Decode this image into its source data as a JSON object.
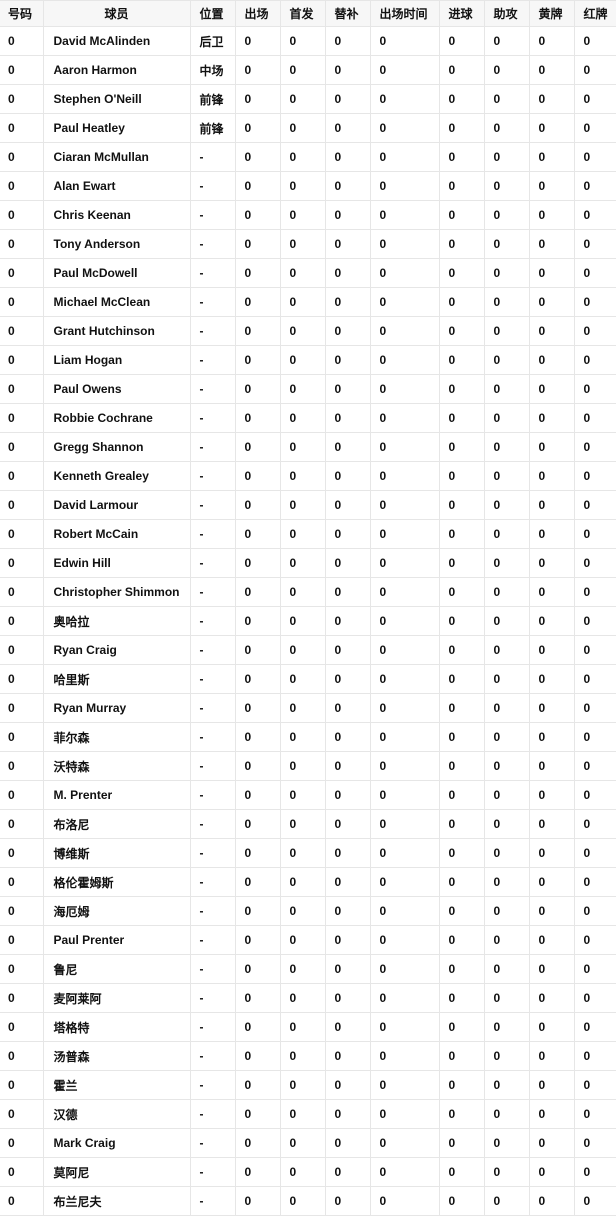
{
  "table": {
    "headers": [
      "号码",
      "球员",
      "位置",
      "出场",
      "首发",
      "替补",
      "出场时间",
      "进球",
      "助攻",
      "黄牌",
      "红牌"
    ],
    "rows": [
      [
        "0",
        "David McAlinden",
        "后卫",
        "0",
        "0",
        "0",
        "0",
        "0",
        "0",
        "0",
        "0"
      ],
      [
        "0",
        "Aaron Harmon",
        "中场",
        "0",
        "0",
        "0",
        "0",
        "0",
        "0",
        "0",
        "0"
      ],
      [
        "0",
        "Stephen O'Neill",
        "前锋",
        "0",
        "0",
        "0",
        "0",
        "0",
        "0",
        "0",
        "0"
      ],
      [
        "0",
        "Paul Heatley",
        "前锋",
        "0",
        "0",
        "0",
        "0",
        "0",
        "0",
        "0",
        "0"
      ],
      [
        "0",
        "Ciaran McMullan",
        "-",
        "0",
        "0",
        "0",
        "0",
        "0",
        "0",
        "0",
        "0"
      ],
      [
        "0",
        "Alan Ewart",
        "-",
        "0",
        "0",
        "0",
        "0",
        "0",
        "0",
        "0",
        "0"
      ],
      [
        "0",
        "Chris Keenan",
        "-",
        "0",
        "0",
        "0",
        "0",
        "0",
        "0",
        "0",
        "0"
      ],
      [
        "0",
        "Tony Anderson",
        "-",
        "0",
        "0",
        "0",
        "0",
        "0",
        "0",
        "0",
        "0"
      ],
      [
        "0",
        "Paul McDowell",
        "-",
        "0",
        "0",
        "0",
        "0",
        "0",
        "0",
        "0",
        "0"
      ],
      [
        "0",
        "Michael McClean",
        "-",
        "0",
        "0",
        "0",
        "0",
        "0",
        "0",
        "0",
        "0"
      ],
      [
        "0",
        "Grant Hutchinson",
        "-",
        "0",
        "0",
        "0",
        "0",
        "0",
        "0",
        "0",
        "0"
      ],
      [
        "0",
        "Liam Hogan",
        "-",
        "0",
        "0",
        "0",
        "0",
        "0",
        "0",
        "0",
        "0"
      ],
      [
        "0",
        "Paul Owens",
        "-",
        "0",
        "0",
        "0",
        "0",
        "0",
        "0",
        "0",
        "0"
      ],
      [
        "0",
        "Robbie Cochrane",
        "-",
        "0",
        "0",
        "0",
        "0",
        "0",
        "0",
        "0",
        "0"
      ],
      [
        "0",
        "Gregg Shannon",
        "-",
        "0",
        "0",
        "0",
        "0",
        "0",
        "0",
        "0",
        "0"
      ],
      [
        "0",
        "Kenneth Grealey",
        "-",
        "0",
        "0",
        "0",
        "0",
        "0",
        "0",
        "0",
        "0"
      ],
      [
        "0",
        "David Larmour",
        "-",
        "0",
        "0",
        "0",
        "0",
        "0",
        "0",
        "0",
        "0"
      ],
      [
        "0",
        "Robert McCain",
        "-",
        "0",
        "0",
        "0",
        "0",
        "0",
        "0",
        "0",
        "0"
      ],
      [
        "0",
        "Edwin Hill",
        "-",
        "0",
        "0",
        "0",
        "0",
        "0",
        "0",
        "0",
        "0"
      ],
      [
        "0",
        "Christopher Shimmon",
        "-",
        "0",
        "0",
        "0",
        "0",
        "0",
        "0",
        "0",
        "0"
      ],
      [
        "0",
        "奥哈拉",
        "-",
        "0",
        "0",
        "0",
        "0",
        "0",
        "0",
        "0",
        "0"
      ],
      [
        "0",
        "Ryan Craig",
        "-",
        "0",
        "0",
        "0",
        "0",
        "0",
        "0",
        "0",
        "0"
      ],
      [
        "0",
        "哈里斯",
        "-",
        "0",
        "0",
        "0",
        "0",
        "0",
        "0",
        "0",
        "0"
      ],
      [
        "0",
        "Ryan Murray",
        "-",
        "0",
        "0",
        "0",
        "0",
        "0",
        "0",
        "0",
        "0"
      ],
      [
        "0",
        "菲尔森",
        "-",
        "0",
        "0",
        "0",
        "0",
        "0",
        "0",
        "0",
        "0"
      ],
      [
        "0",
        "沃特森",
        "-",
        "0",
        "0",
        "0",
        "0",
        "0",
        "0",
        "0",
        "0"
      ],
      [
        "0",
        "M. Prenter",
        "-",
        "0",
        "0",
        "0",
        "0",
        "0",
        "0",
        "0",
        "0"
      ],
      [
        "0",
        "布洛尼",
        "-",
        "0",
        "0",
        "0",
        "0",
        "0",
        "0",
        "0",
        "0"
      ],
      [
        "0",
        "博维斯",
        "-",
        "0",
        "0",
        "0",
        "0",
        "0",
        "0",
        "0",
        "0"
      ],
      [
        "0",
        "格伦霍姆斯",
        "-",
        "0",
        "0",
        "0",
        "0",
        "0",
        "0",
        "0",
        "0"
      ],
      [
        "0",
        "海厄姆",
        "-",
        "0",
        "0",
        "0",
        "0",
        "0",
        "0",
        "0",
        "0"
      ],
      [
        "0",
        "Paul Prenter",
        "-",
        "0",
        "0",
        "0",
        "0",
        "0",
        "0",
        "0",
        "0"
      ],
      [
        "0",
        "鲁尼",
        "-",
        "0",
        "0",
        "0",
        "0",
        "0",
        "0",
        "0",
        "0"
      ],
      [
        "0",
        "麦阿莱阿",
        "-",
        "0",
        "0",
        "0",
        "0",
        "0",
        "0",
        "0",
        "0"
      ],
      [
        "0",
        "塔格特",
        "-",
        "0",
        "0",
        "0",
        "0",
        "0",
        "0",
        "0",
        "0"
      ],
      [
        "0",
        "汤普森",
        "-",
        "0",
        "0",
        "0",
        "0",
        "0",
        "0",
        "0",
        "0"
      ],
      [
        "0",
        "霍兰",
        "-",
        "0",
        "0",
        "0",
        "0",
        "0",
        "0",
        "0",
        "0"
      ],
      [
        "0",
        "汉德",
        "-",
        "0",
        "0",
        "0",
        "0",
        "0",
        "0",
        "0",
        "0"
      ],
      [
        "0",
        "Mark Craig",
        "-",
        "0",
        "0",
        "0",
        "0",
        "0",
        "0",
        "0",
        "0"
      ],
      [
        "0",
        "莫阿尼",
        "-",
        "0",
        "0",
        "0",
        "0",
        "0",
        "0",
        "0",
        "0"
      ],
      [
        "0",
        "布兰尼夫",
        "-",
        "0",
        "0",
        "0",
        "0",
        "0",
        "0",
        "0",
        "0"
      ]
    ]
  }
}
